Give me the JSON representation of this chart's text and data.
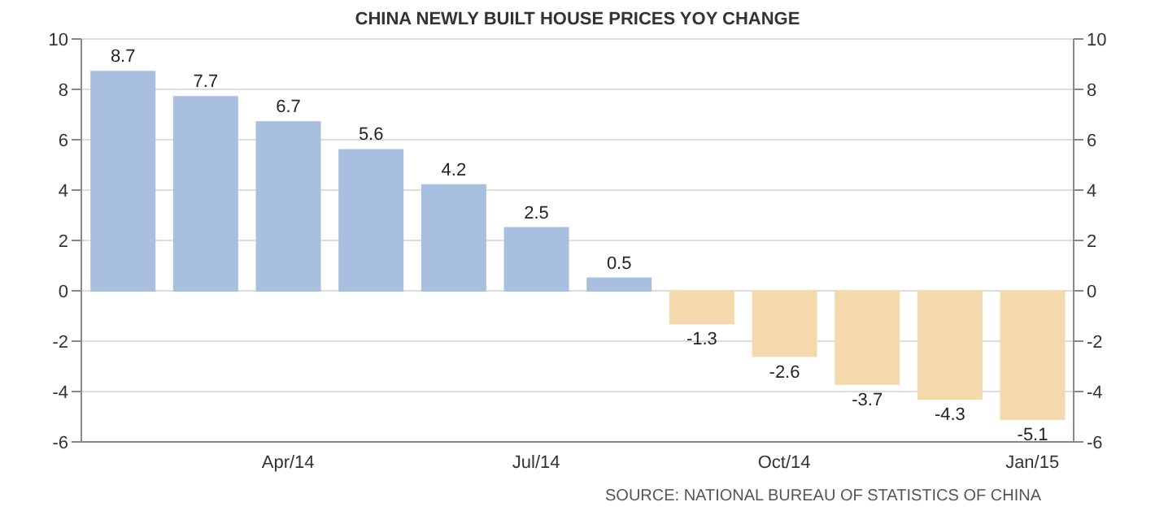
{
  "chart_data": {
    "type": "bar",
    "title": "CHINA NEWLY BUILT HOUSE PRICES YOY CHANGE",
    "categories": [
      null,
      null,
      "Apr/14",
      null,
      null,
      "Jul/14",
      null,
      null,
      "Oct/14",
      null,
      null,
      "Jan/15"
    ],
    "values": [
      8.7,
      7.7,
      6.7,
      5.6,
      4.2,
      2.5,
      0.5,
      -1.3,
      -2.6,
      -3.7,
      -4.3,
      -5.1
    ],
    "colors": [
      "#a9bfdf",
      "#a9bfdf",
      "#a9bfdf",
      "#a9bfdf",
      "#a9bfdf",
      "#a9bfdf",
      "#a9bfdf",
      "#f3d9ab",
      "#f3d9ab",
      "#f3d9ab",
      "#f3d9ab",
      "#f3d9ab"
    ],
    "data_labels": true,
    "ylim": [
      -6,
      10
    ],
    "yticks": [
      -6,
      -4,
      -2,
      0,
      2,
      4,
      6,
      8,
      10
    ],
    "y2lim": [
      -6,
      10
    ],
    "y2ticks": [
      -6,
      -4,
      -2,
      0,
      2,
      4,
      6,
      8,
      10
    ],
    "grid": "y",
    "annotations": [
      "SOURCE: NATIONAL BUREAU OF STATISTICS OF CHINA"
    ]
  }
}
